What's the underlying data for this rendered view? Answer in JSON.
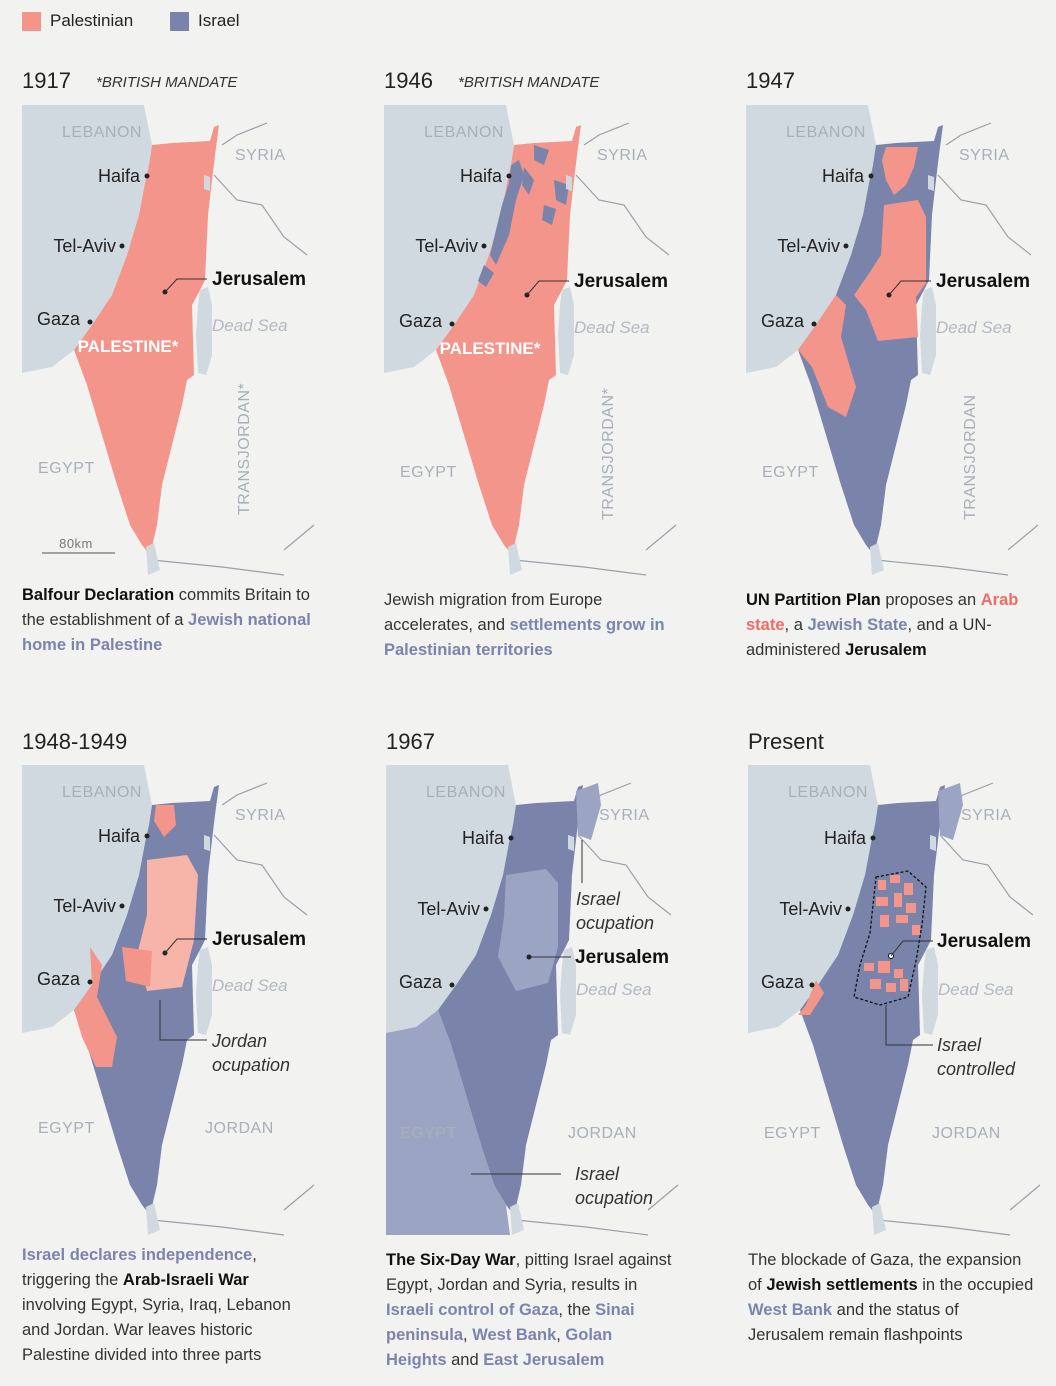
{
  "legend": [
    {
      "label": "Palestinian",
      "color": "#f3958a"
    },
    {
      "label": "Israel",
      "color": "#7a83aa"
    }
  ],
  "panels": [
    {
      "year": "1917",
      "note": "*BRITISH MANDATE",
      "map": {
        "lebanon": "LEBANON",
        "syria": "SYRIA",
        "haifa": "Haifa",
        "telaviv": "Tel-Aviv",
        "jerusalem": "Jerusalem",
        "gaza": "Gaza",
        "deadsea": "Dead Sea",
        "palestine": "PALESTINE*",
        "egypt": "EGYPT",
        "transjordan": "TRANSJORDAN*",
        "scale": "80km"
      },
      "caption": [
        "Balfour Declaration",
        " commits Britain to the establishment of a ",
        "Jewish national home in Palestine"
      ]
    },
    {
      "year": "1946",
      "note": "*BRITISH MANDATE",
      "map": {
        "lebanon": "LEBANON",
        "syria": "SYRIA",
        "haifa": "Haifa",
        "telaviv": "Tel-Aviv",
        "jerusalem": "Jerusalem",
        "gaza": "Gaza",
        "deadsea": "Dead Sea",
        "palestine": "PALESTINE*",
        "egypt": "EGYPT",
        "transjordan": "TRANSJORDAN*"
      },
      "caption": [
        "Jewish migration from Europe accelerates, and ",
        "settlements grow in Palestinian territories"
      ]
    },
    {
      "year": "1947",
      "map": {
        "lebanon": "LEBANON",
        "syria": "SYRIA",
        "haifa": "Haifa",
        "telaviv": "Tel-Aviv",
        "jerusalem": "Jerusalem",
        "gaza": "Gaza",
        "deadsea": "Dead Sea",
        "egypt": "EGYPT",
        "transjordan": "TRANSJORDAN"
      },
      "caption": [
        "UN Partition Plan",
        " proposes an ",
        "Arab state",
        ", a ",
        "Jewish State",
        ", and a UN-administered ",
        "Jerusalem"
      ]
    },
    {
      "year": "1948-1949",
      "map": {
        "lebanon": "LEBANON",
        "syria": "SYRIA",
        "haifa": "Haifa",
        "telaviv": "Tel-Aviv",
        "jerusalem": "Jerusalem",
        "gaza": "Gaza",
        "deadsea": "Dead Sea",
        "egypt": "EGYPT",
        "jordan": "JORDAN",
        "annotation": [
          "Jordan",
          "ocupation"
        ]
      },
      "caption": [
        "Israel declares independence",
        ", triggering the ",
        "Arab-Israeli War",
        " involving Egypt, Syria, Iraq, Lebanon and Jordan. War leaves historic Palestine divided into three parts"
      ]
    },
    {
      "year": "1967",
      "map": {
        "lebanon": "LEBANON",
        "syria": "SYRIA",
        "haifa": "Haifa",
        "telaviv": "Tel-Aviv",
        "jerusalem": "Jerusalem",
        "gaza": "Gaza",
        "deadsea": "Dead Sea",
        "egypt": "EGYPT",
        "jordan": "JORDAN",
        "annotation": [
          "Israel",
          "ocupation"
        ],
        "annotation2": [
          "Israel",
          "ocupation"
        ]
      },
      "caption": [
        "The Six-Day War",
        ", pitting Israel against Egypt, Jordan and Syria, results in ",
        "Israeli control of Gaza",
        ", the ",
        "Sinai peninsula",
        ", ",
        "West Bank",
        ", ",
        "Golan Heights",
        " and ",
        "East Jerusalem"
      ]
    },
    {
      "year": "Present",
      "map": {
        "lebanon": "LEBANON",
        "syria": "SYRIA",
        "haifa": "Haifa",
        "telaviv": "Tel-Aviv",
        "jerusalem": "Jerusalem",
        "gaza": "Gaza",
        "deadsea": "Dead Sea",
        "egypt": "EGYPT",
        "jordan": "JORDAN",
        "annotation": [
          "Israel",
          "controlled"
        ]
      },
      "caption": [
        "The blockade of Gaza, the expansion of ",
        "Jewish settlements",
        " in the occupied ",
        "West Bank",
        " and the status of Jerusalem remain flashpoints"
      ]
    }
  ]
}
